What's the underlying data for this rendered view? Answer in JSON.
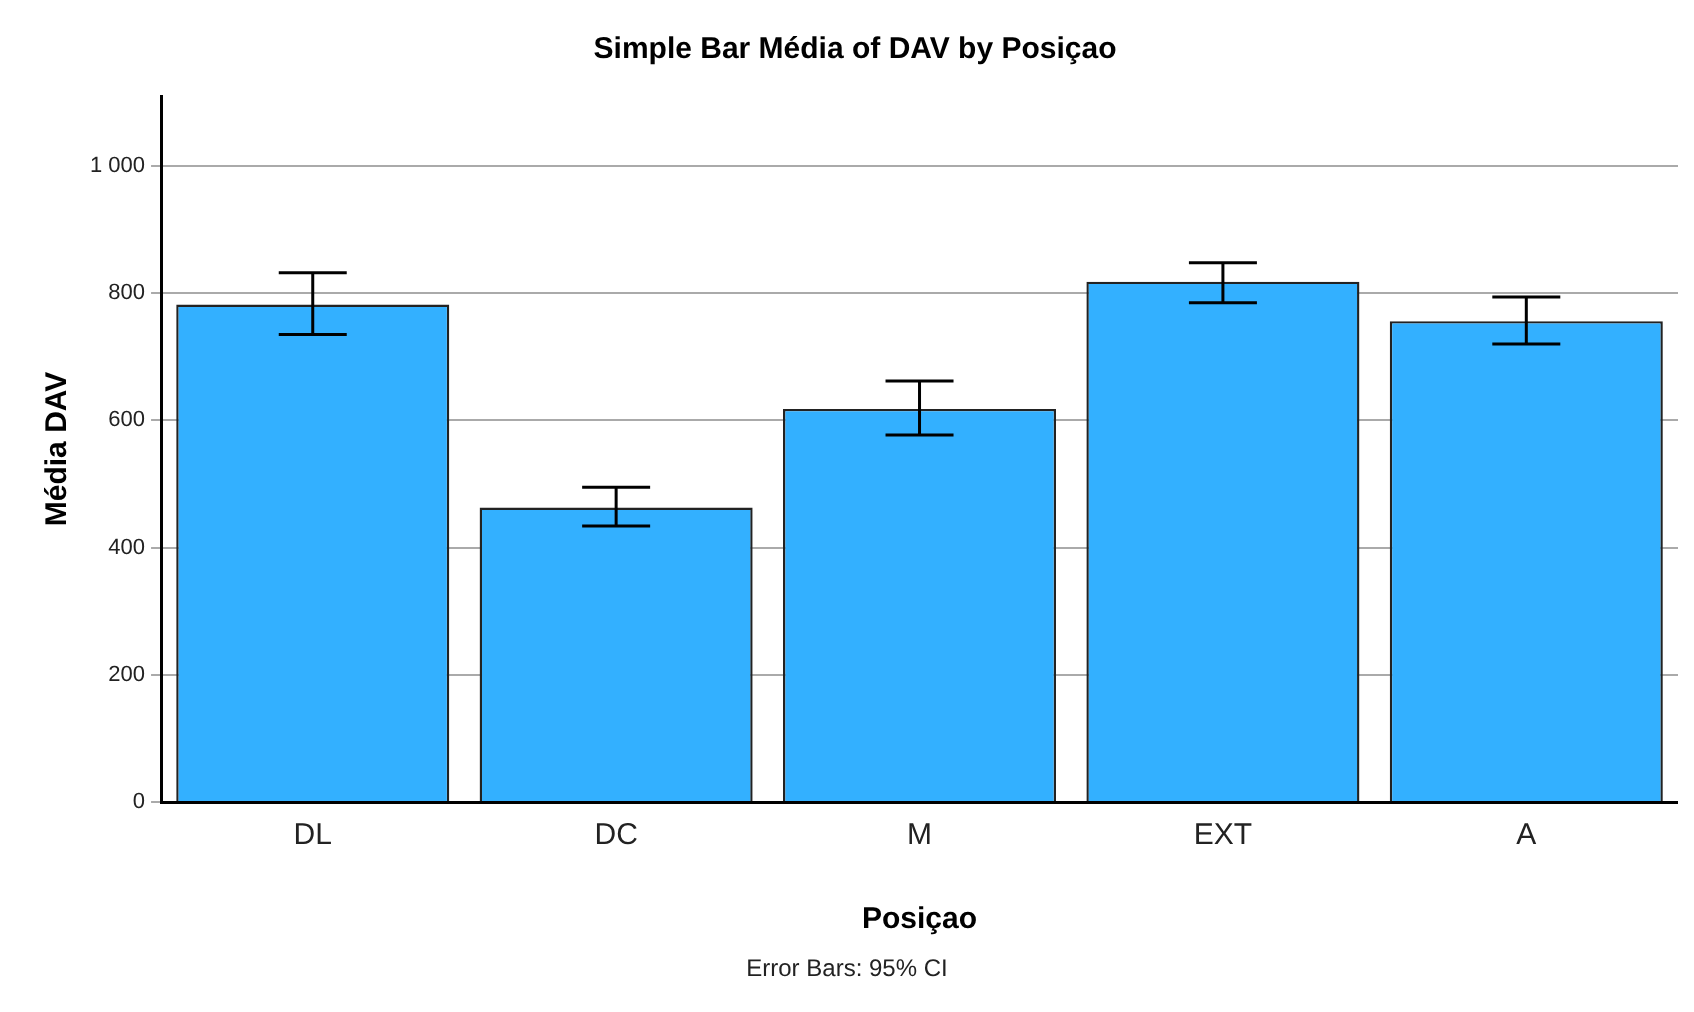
{
  "chart_data": {
    "type": "bar",
    "title": "Simple Bar Média of DAV by Posiçao",
    "xlabel": "Posiçao",
    "ylabel": "Média DAV",
    "categories": [
      "DL",
      "DC",
      "M",
      "EXT",
      "A"
    ],
    "values": [
      782,
      463,
      618,
      818,
      756
    ],
    "errors": [
      [
        735,
        832
      ],
      [
        434,
        495
      ],
      [
        577,
        662
      ],
      [
        785,
        848
      ],
      [
        720,
        794
      ]
    ],
    "color": "#33b0ff",
    "ylim": [
      0,
      1110
    ],
    "yticks": [
      0,
      200,
      400,
      600,
      800,
      {
        "value": 1000,
        "label": "1 000"
      }
    ],
    "grid": "y",
    "legend": false,
    "annotations": [
      "Error Bars: 95% CI"
    ]
  }
}
